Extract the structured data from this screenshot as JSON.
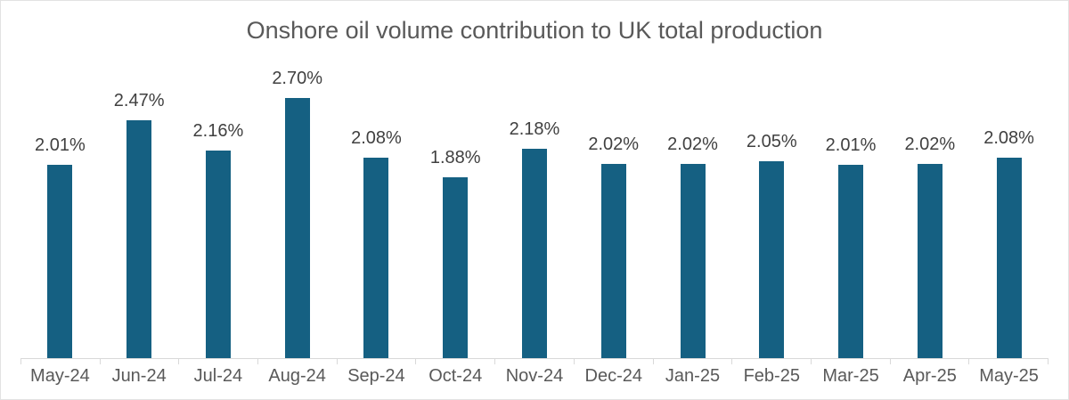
{
  "chart": {
    "title": "Onshore oil volume contribution to UK total production"
  },
  "chart_data": {
    "type": "bar",
    "title": "Onshore oil volume contribution to UK total production",
    "categories": [
      "May-24",
      "Jun-24",
      "Jul-24",
      "Aug-24",
      "Sep-24",
      "Oct-24",
      "Nov-24",
      "Dec-24",
      "Jan-25",
      "Feb-25",
      "Mar-25",
      "Apr-25",
      "May-25"
    ],
    "values": [
      2.01,
      2.47,
      2.16,
      2.7,
      2.08,
      1.88,
      2.18,
      2.02,
      2.02,
      2.05,
      2.01,
      2.02,
      2.08
    ],
    "data_labels": [
      "2.01%",
      "2.47%",
      "2.16%",
      "2.70%",
      "2.08%",
      "1.88%",
      "2.18%",
      "2.02%",
      "2.02%",
      "2.05%",
      "2.01%",
      "2.02%",
      "2.08%"
    ],
    "xlabel": "",
    "ylabel": "",
    "ylim": [
      0,
      3.7
    ],
    "grid": false,
    "legend": false,
    "y_axis_visible": false,
    "value_unit": "%"
  },
  "colors": {
    "bar": "#156082",
    "title_text": "#595959",
    "data_label_text": "#404040",
    "axis_label_text": "#595959",
    "axis_line": "#d9d9d9",
    "chart_border": "#e2e2e2",
    "background": "#ffffff"
  }
}
